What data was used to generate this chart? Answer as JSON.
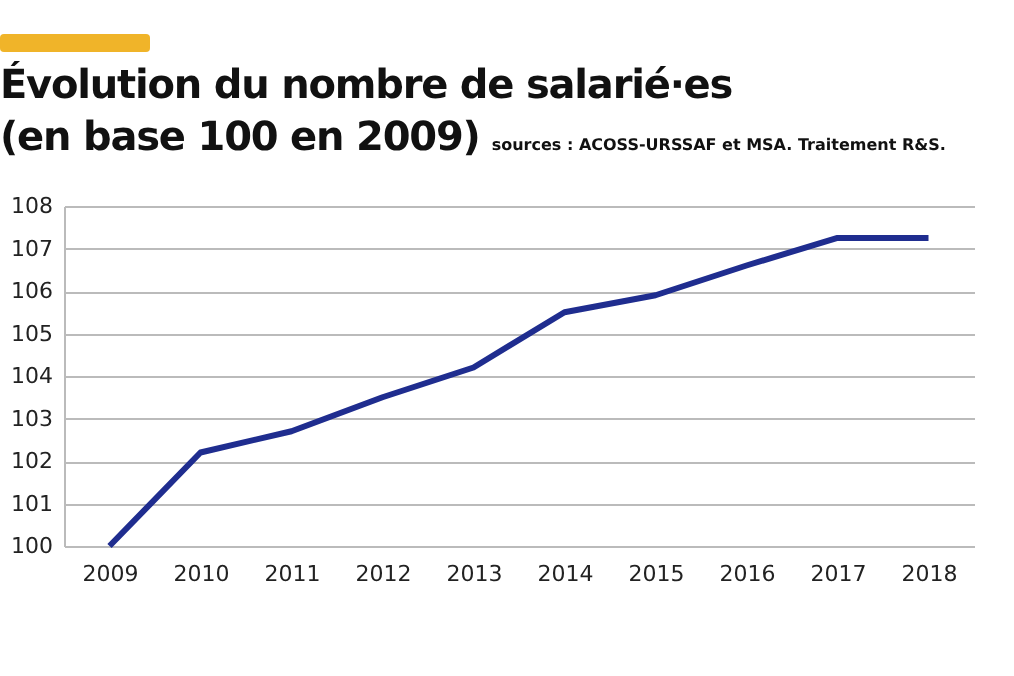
{
  "chart_data": {
    "type": "line",
    "title": "Évolution du nombre de salarié·es\n(en base 100 en 2009)",
    "annotations": [
      "sources : ACOSS-URSSAF et MSA. Traitement R&S."
    ],
    "categories": [
      "2009",
      "2010",
      "2011",
      "2012",
      "2013",
      "2014",
      "2015",
      "2016",
      "2017",
      "2018"
    ],
    "series": [
      {
        "color": "#1f2d8f",
        "values": [
          100,
          102.2,
          102.7,
          103.5,
          104.2,
          105.5,
          105.9,
          106.6,
          107.25,
          107.25
        ]
      }
    ],
    "ylim": [
      100,
      108
    ],
    "yticks": [
      100,
      101,
      102,
      103,
      104,
      105,
      106,
      107,
      108
    ],
    "grid": "y",
    "marker": "none",
    "line_style": "solid"
  }
}
